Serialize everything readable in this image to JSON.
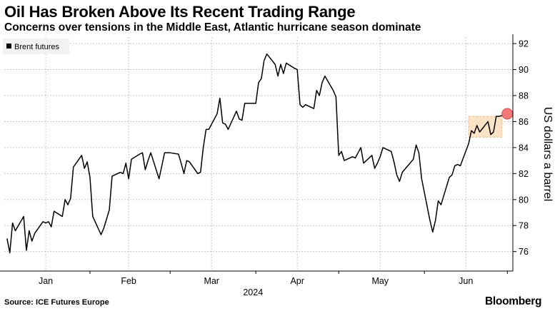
{
  "title": "Oil Has Broken Above Its Recent Trading Range",
  "subtitle": "Concerns over tensions in the Middle East, Atlantic hurricane season dominate",
  "source": "Source: ICE Futures Europe",
  "brand": "Bloomberg",
  "colors": {
    "line": "#000000",
    "grid": "#c8c8c8",
    "highlight_fill": "#fbe3c6",
    "highlight_border": "#e8b885",
    "marker_fill": "#f47a7a",
    "marker_stroke": "#d84a4a"
  },
  "chart_data": {
    "type": "line",
    "title": "Oil Has Broken Above Its Recent Trading Range",
    "subtitle": "Concerns over tensions in the Middle East, Atlantic hurricane season dominate",
    "ylabel": "US dollars a barrel",
    "year_label": "2024",
    "ylim": [
      74.5,
      92.5
    ],
    "yticks": [
      76,
      78,
      80,
      82,
      84,
      86,
      88,
      90,
      92
    ],
    "x_range": [
      "2024-01-01",
      "2024-07-03"
    ],
    "month_ticks": [
      {
        "label": "Jan",
        "date": "2024-01-16"
      },
      {
        "label": "Feb",
        "date": "2024-02-15"
      },
      {
        "label": "Mar",
        "date": "2024-03-16"
      },
      {
        "label": "Apr",
        "date": "2024-04-16"
      },
      {
        "label": "May",
        "date": "2024-05-16"
      },
      {
        "label": "Jun",
        "date": "2024-06-16"
      }
    ],
    "grid": true,
    "y_axis_position": "right",
    "legend_position": "top-left",
    "series": [
      {
        "name": "Brent futures",
        "x": [
          "2024-01-02",
          "2024-01-03",
          "2024-01-04",
          "2024-01-05",
          "2024-01-08",
          "2024-01-09",
          "2024-01-10",
          "2024-01-11",
          "2024-01-12",
          "2024-01-15",
          "2024-01-16",
          "2024-01-17",
          "2024-01-18",
          "2024-01-19",
          "2024-01-22",
          "2024-01-23",
          "2024-01-24",
          "2024-01-25",
          "2024-01-26",
          "2024-01-29",
          "2024-01-30",
          "2024-01-31",
          "2024-02-01",
          "2024-02-02",
          "2024-02-05",
          "2024-02-06",
          "2024-02-07",
          "2024-02-08",
          "2024-02-09",
          "2024-02-12",
          "2024-02-13",
          "2024-02-14",
          "2024-02-15",
          "2024-02-16",
          "2024-02-19",
          "2024-02-20",
          "2024-02-21",
          "2024-02-22",
          "2024-02-23",
          "2024-02-26",
          "2024-02-27",
          "2024-02-28",
          "2024-02-29",
          "2024-03-01",
          "2024-03-04",
          "2024-03-05",
          "2024-03-06",
          "2024-03-07",
          "2024-03-08",
          "2024-03-11",
          "2024-03-12",
          "2024-03-13",
          "2024-03-14",
          "2024-03-15",
          "2024-03-18",
          "2024-03-19",
          "2024-03-20",
          "2024-03-21",
          "2024-03-22",
          "2024-03-25",
          "2024-03-26",
          "2024-03-27",
          "2024-03-28",
          "2024-04-01",
          "2024-04-02",
          "2024-04-03",
          "2024-04-04",
          "2024-04-05",
          "2024-04-08",
          "2024-04-09",
          "2024-04-10",
          "2024-04-11",
          "2024-04-12",
          "2024-04-15",
          "2024-04-16",
          "2024-04-17",
          "2024-04-18",
          "2024-04-19",
          "2024-04-22",
          "2024-04-23",
          "2024-04-24",
          "2024-04-25",
          "2024-04-26",
          "2024-04-29",
          "2024-04-30",
          "2024-05-01",
          "2024-05-02",
          "2024-05-03",
          "2024-05-06",
          "2024-05-07",
          "2024-05-08",
          "2024-05-09",
          "2024-05-10",
          "2024-05-13",
          "2024-05-14",
          "2024-05-15",
          "2024-05-16",
          "2024-05-17",
          "2024-05-20",
          "2024-05-21",
          "2024-05-22",
          "2024-05-23",
          "2024-05-24",
          "2024-05-28",
          "2024-05-29",
          "2024-05-30",
          "2024-05-31",
          "2024-06-03",
          "2024-06-04",
          "2024-06-05",
          "2024-06-06",
          "2024-06-07",
          "2024-06-10",
          "2024-06-11",
          "2024-06-12",
          "2024-06-13",
          "2024-06-14",
          "2024-06-17",
          "2024-06-18",
          "2024-06-19",
          "2024-06-20",
          "2024-06-21",
          "2024-06-24",
          "2024-06-25",
          "2024-06-26",
          "2024-06-27",
          "2024-06-28",
          "2024-07-01"
        ],
        "y": [
          77.0,
          75.9,
          78.2,
          77.6,
          78.7,
          76.1,
          77.6,
          76.8,
          77.4,
          78.3,
          78.2,
          78.3,
          77.9,
          79.1,
          78.7,
          80.0,
          79.6,
          80.1,
          82.5,
          83.4,
          82.4,
          82.9,
          81.7,
          78.7,
          77.3,
          77.8,
          78.5,
          79.2,
          81.8,
          82.1,
          82.0,
          82.8,
          81.6,
          83.1,
          83.5,
          83.6,
          82.3,
          83.0,
          83.6,
          81.6,
          82.6,
          83.6,
          83.6,
          83.6,
          83.5,
          82.8,
          82.0,
          83.0,
          82.9,
          82.0,
          82.1,
          84.0,
          85.4,
          85.4,
          86.6,
          87.8,
          85.9,
          85.8,
          85.4,
          86.8,
          86.2,
          86.1,
          87.4,
          87.4,
          89.0,
          89.3,
          90.7,
          91.2,
          90.4,
          89.5,
          90.4,
          89.7,
          90.5,
          90.1,
          90.0,
          87.3,
          87.1,
          87.3,
          87.0,
          88.4,
          88.0,
          89.0,
          89.5,
          88.4,
          87.9,
          83.4,
          83.7,
          83.0,
          83.3,
          83.2,
          83.6,
          84.0,
          82.8,
          83.4,
          82.4,
          82.8,
          83.3,
          84.0,
          83.7,
          82.9,
          81.9,
          81.4,
          82.1,
          83.1,
          84.2,
          83.6,
          81.6,
          78.4,
          77.5,
          78.4,
          79.9,
          79.6,
          81.7,
          81.9,
          82.6,
          82.7,
          82.6,
          84.3,
          85.3,
          85.1,
          85.7,
          85.2,
          86.0,
          85.0,
          85.2,
          86.4,
          86.4,
          86.6
        ]
      }
    ],
    "highlight": {
      "x_start": "2024-06-17",
      "x_end": "2024-06-29",
      "y_min": 84.8,
      "y_max": 86.4
    },
    "last_point_marker": {
      "x": "2024-07-01",
      "y": 86.6
    }
  }
}
